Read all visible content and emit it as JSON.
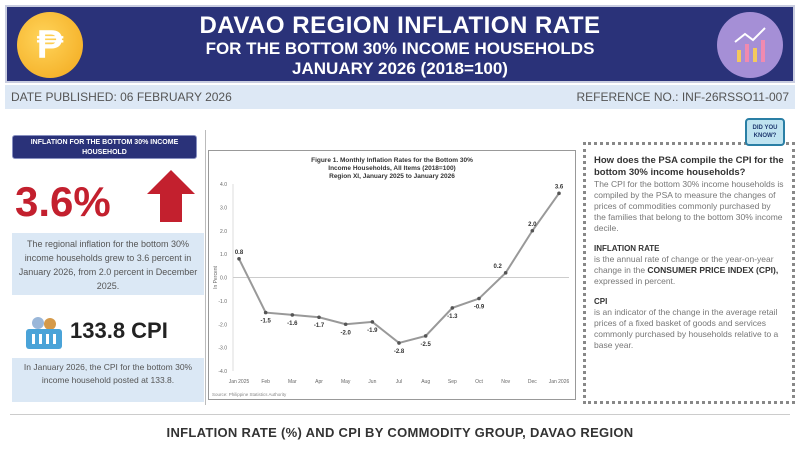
{
  "header": {
    "title": "DAVAO REGION INFLATION RATE",
    "subtitle": "FOR THE BOTTOM 30% INCOME HOUSEHOLDS",
    "period": "JANUARY 2026 (2018=100)",
    "peso_symbol": "₱"
  },
  "strip": {
    "date": "DATE PUBLISHED: 06 FEBRUARY 2026",
    "reference": "REFERENCE NO.: INF-26RSSO11-007"
  },
  "left": {
    "label": "INFLATION FOR THE BOTTOM 30% INCOME HOUSEHOLD",
    "rate": "3.6%",
    "rate_desc": "The regional inflation for the bottom 30% income households grew to 3.6 percent in January 2026, from 2.0 percent in December 2025.",
    "cpi": "133.8 CPI",
    "cpi_desc": "In January 2026, the CPI for the bottom 30% income household posted at 133.8."
  },
  "info": {
    "badge": "DID YOU KNOW?",
    "question": "How does the PSA compile the CPI for the bottom 30% income households?",
    "answer": "The CPI for the bottom 30% income households is compiled by the PSA to measure the changes of prices of commodities commonly purchased by the families that belong to the bottom 30% income decile.",
    "inflation_heading": "INFLATION RATE",
    "inflation_text": "is the annual rate of change or the year-on-year change in the",
    "inflation_bold": "CONSUMER PRICE INDEX (CPI),",
    "inflation_tail": "expressed in percent.",
    "cpi_heading": "CPI",
    "cpi_text": "is an indicator of the change in the average retail prices of a fixed basket of goods and services commonly purchased by households relative to a base year."
  },
  "footer": {
    "title": "INFLATION RATE (%) AND CPI BY COMMODITY GROUP, DAVAO REGION"
  },
  "colors": {
    "navy": "#2a3279",
    "red": "#c3202e",
    "light_blue": "#dbe8f5"
  },
  "chart_data": {
    "type": "line",
    "title": [
      "Figure 1. Monthly Inflation Rates for the Bottom 30%",
      "Income Households, All Items (2018=100)",
      "Region XI, January 2025 to January 2026"
    ],
    "ylabel": "In Percent",
    "source": "Source: Philippine Statistics Authority",
    "categories": [
      "Jan 2025",
      "Feb",
      "Mar",
      "Apr",
      "May",
      "Jun",
      "Jul",
      "Aug",
      "Sep",
      "Oct",
      "Nov",
      "Dec",
      "Jan 2026"
    ],
    "values": [
      0.8,
      -1.5,
      -1.6,
      -1.7,
      -2.0,
      -1.9,
      -2.8,
      -2.5,
      -1.3,
      -0.9,
      0.2,
      2.0,
      3.6
    ],
    "ylim": [
      -4,
      4
    ],
    "yticks": [
      "4.0",
      "3.0",
      "2.0",
      "1.0",
      "0.0",
      "-1.0",
      "-2.0",
      "-3.0",
      "-4.0"
    ],
    "grid": false
  }
}
